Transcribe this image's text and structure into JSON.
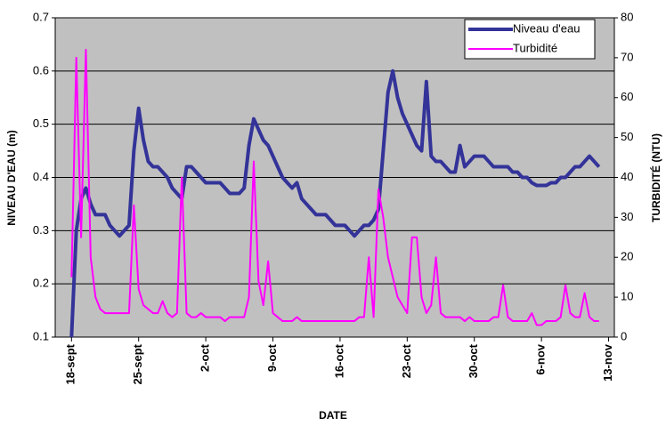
{
  "chart_data": {
    "type": "line",
    "xlabel": "DATE",
    "ylabel": "NIVEAU D'EAU (m)",
    "y2label": "TURBIDITÉ (NTU)",
    "x": [
      0,
      0.5,
      1,
      1.5,
      2,
      2.5,
      3,
      3.5,
      4,
      4.5,
      5,
      5.5,
      6,
      6.5,
      7,
      7.5,
      8,
      8.5,
      9,
      9.5,
      10,
      10.5,
      11,
      11.5,
      12,
      12.5,
      13,
      13.5,
      14,
      14.5,
      15,
      15.5,
      16,
      16.5,
      17,
      17.5,
      18,
      18.5,
      19,
      19.5,
      20,
      20.5,
      21,
      21.5,
      22,
      22.5,
      23,
      23.5,
      24,
      24.5,
      25,
      25.5,
      26,
      26.5,
      27,
      27.5,
      28,
      28.5,
      29,
      29.5,
      30,
      30.5,
      31,
      31.5,
      32,
      32.5,
      33,
      33.5,
      34,
      34.5,
      35,
      35.5,
      36,
      36.5,
      37,
      37.5,
      38,
      38.5,
      39,
      39.5,
      40,
      40.5,
      41,
      41.5,
      42,
      42.5,
      43,
      43.5,
      44,
      44.5,
      45,
      45.5,
      46,
      46.5,
      47,
      47.5,
      48,
      48.5,
      49,
      49.5,
      50,
      50.5,
      51,
      51.5,
      52,
      52.5,
      53,
      53.5,
      54,
      54.5,
      55
    ],
    "series": [
      {
        "name": "Niveau d'eau",
        "color": "#333399",
        "axis": "y",
        "values": [
          0.1,
          0.3,
          0.36,
          0.38,
          0.35,
          0.33,
          0.33,
          0.33,
          0.31,
          0.3,
          0.29,
          0.3,
          0.31,
          0.45,
          0.53,
          0.47,
          0.43,
          0.42,
          0.42,
          0.41,
          0.4,
          0.38,
          0.37,
          0.36,
          0.42,
          0.42,
          0.41,
          0.4,
          0.39,
          0.39,
          0.39,
          0.39,
          0.38,
          0.37,
          0.37,
          0.37,
          0.38,
          0.46,
          0.51,
          0.49,
          0.47,
          0.46,
          0.44,
          0.42,
          0.4,
          0.39,
          0.38,
          0.39,
          0.36,
          0.35,
          0.34,
          0.33,
          0.33,
          0.33,
          0.32,
          0.31,
          0.31,
          0.31,
          0.3,
          0.29,
          0.3,
          0.31,
          0.31,
          0.32,
          0.34,
          0.45,
          0.56,
          0.6,
          0.55,
          0.52,
          0.5,
          0.48,
          0.46,
          0.45,
          0.58,
          0.44,
          0.43,
          0.43,
          0.42,
          0.41,
          0.41,
          0.46,
          0.42,
          0.43,
          0.44,
          0.44,
          0.44,
          0.43,
          0.42,
          0.42,
          0.42,
          0.42,
          0.41,
          0.41,
          0.4,
          0.4,
          0.39,
          0.385,
          0.385,
          0.385,
          0.39,
          0.39,
          0.4,
          0.4,
          0.41,
          0.42,
          0.42,
          0.43,
          0.44,
          0.43,
          0.42
        ]
      },
      {
        "name": "Turbidité",
        "color": "#ff00ff",
        "axis": "y2",
        "values": [
          15,
          70,
          25,
          72,
          20,
          10,
          7,
          6,
          6,
          6,
          6,
          6,
          6,
          33,
          12,
          8,
          7,
          6,
          6,
          9,
          6,
          5,
          6,
          40,
          6,
          5,
          5,
          6,
          5,
          5,
          5,
          5,
          4,
          5,
          5,
          5,
          5,
          10,
          44,
          14,
          8,
          19,
          6,
          5,
          4,
          4,
          4,
          5,
          4,
          4,
          4,
          4,
          4,
          4,
          4,
          4,
          4,
          4,
          4,
          4,
          5,
          5,
          20,
          5,
          37,
          30,
          20,
          15,
          10,
          8,
          6,
          25,
          25,
          10,
          6,
          8,
          20,
          6,
          5,
          5,
          5,
          5,
          4,
          5,
          4,
          4,
          4,
          4,
          5,
          5,
          13,
          5,
          4,
          4,
          4,
          4,
          6,
          3,
          3,
          4,
          4,
          4,
          5,
          13,
          6,
          5,
          5,
          11,
          5,
          4,
          4
        ]
      }
    ],
    "xlim": [
      -1.7,
      56.6
    ],
    "xticks": [
      {
        "value": 0,
        "label": "18-sept"
      },
      {
        "value": 7,
        "label": "25-sept"
      },
      {
        "value": 14,
        "label": "2-oct"
      },
      {
        "value": 21,
        "label": "9-oct"
      },
      {
        "value": 28,
        "label": "16-oct"
      },
      {
        "value": 35,
        "label": "23-oct"
      },
      {
        "value": 42,
        "label": "30-oct"
      },
      {
        "value": 49,
        "label": "6-nov"
      },
      {
        "value": 56,
        "label": "13-nov"
      }
    ],
    "ylim": [
      0.1,
      0.7
    ],
    "yticks": [
      0.1,
      0.2,
      0.3,
      0.4,
      0.5,
      0.6,
      0.7
    ],
    "y2lim": [
      0,
      80
    ],
    "y2ticks": [
      0,
      10,
      20,
      30,
      40,
      50,
      60,
      70,
      80
    ],
    "grid": true,
    "legend": "upper right",
    "background": "#c0c0c0"
  }
}
